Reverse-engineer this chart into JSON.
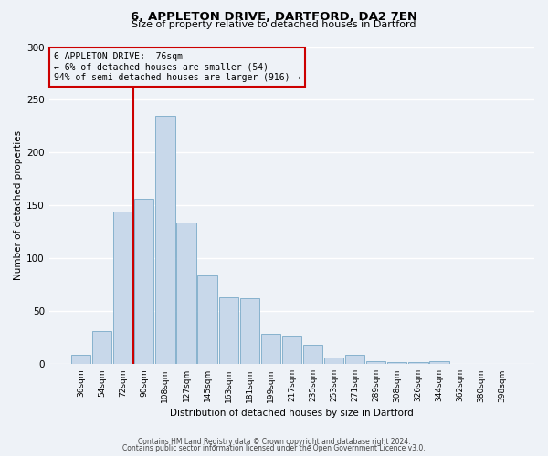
{
  "title": "6, APPLETON DRIVE, DARTFORD, DA2 7EN",
  "subtitle": "Size of property relative to detached houses in Dartford",
  "xlabel": "Distribution of detached houses by size in Dartford",
  "ylabel": "Number of detached properties",
  "bar_labels": [
    "36sqm",
    "54sqm",
    "72sqm",
    "90sqm",
    "108sqm",
    "127sqm",
    "145sqm",
    "163sqm",
    "181sqm",
    "199sqm",
    "217sqm",
    "235sqm",
    "253sqm",
    "271sqm",
    "289sqm",
    "308sqm",
    "326sqm",
    "344sqm",
    "362sqm",
    "380sqm",
    "398sqm"
  ],
  "bar_values": [
    9,
    31,
    144,
    156,
    235,
    134,
    84,
    63,
    62,
    29,
    27,
    18,
    6,
    9,
    3,
    2,
    2,
    3,
    0,
    0,
    0
  ],
  "bar_color": "#c8d8ea",
  "bar_edge_color": "#7aaac8",
  "background_color": "#eef2f7",
  "grid_color": "#ffffff",
  "vline_x": 2.5,
  "vline_color": "#cc0000",
  "annotation_lines": [
    "6 APPLETON DRIVE:  76sqm",
    "← 6% of detached houses are smaller (54)",
    "94% of semi-detached houses are larger (916) →"
  ],
  "annotation_box_color": "#cc0000",
  "ylim": [
    0,
    300
  ],
  "yticks": [
    0,
    50,
    100,
    150,
    200,
    250,
    300
  ],
  "footer1": "Contains HM Land Registry data © Crown copyright and database right 2024.",
  "footer2": "Contains public sector information licensed under the Open Government Licence v3.0."
}
